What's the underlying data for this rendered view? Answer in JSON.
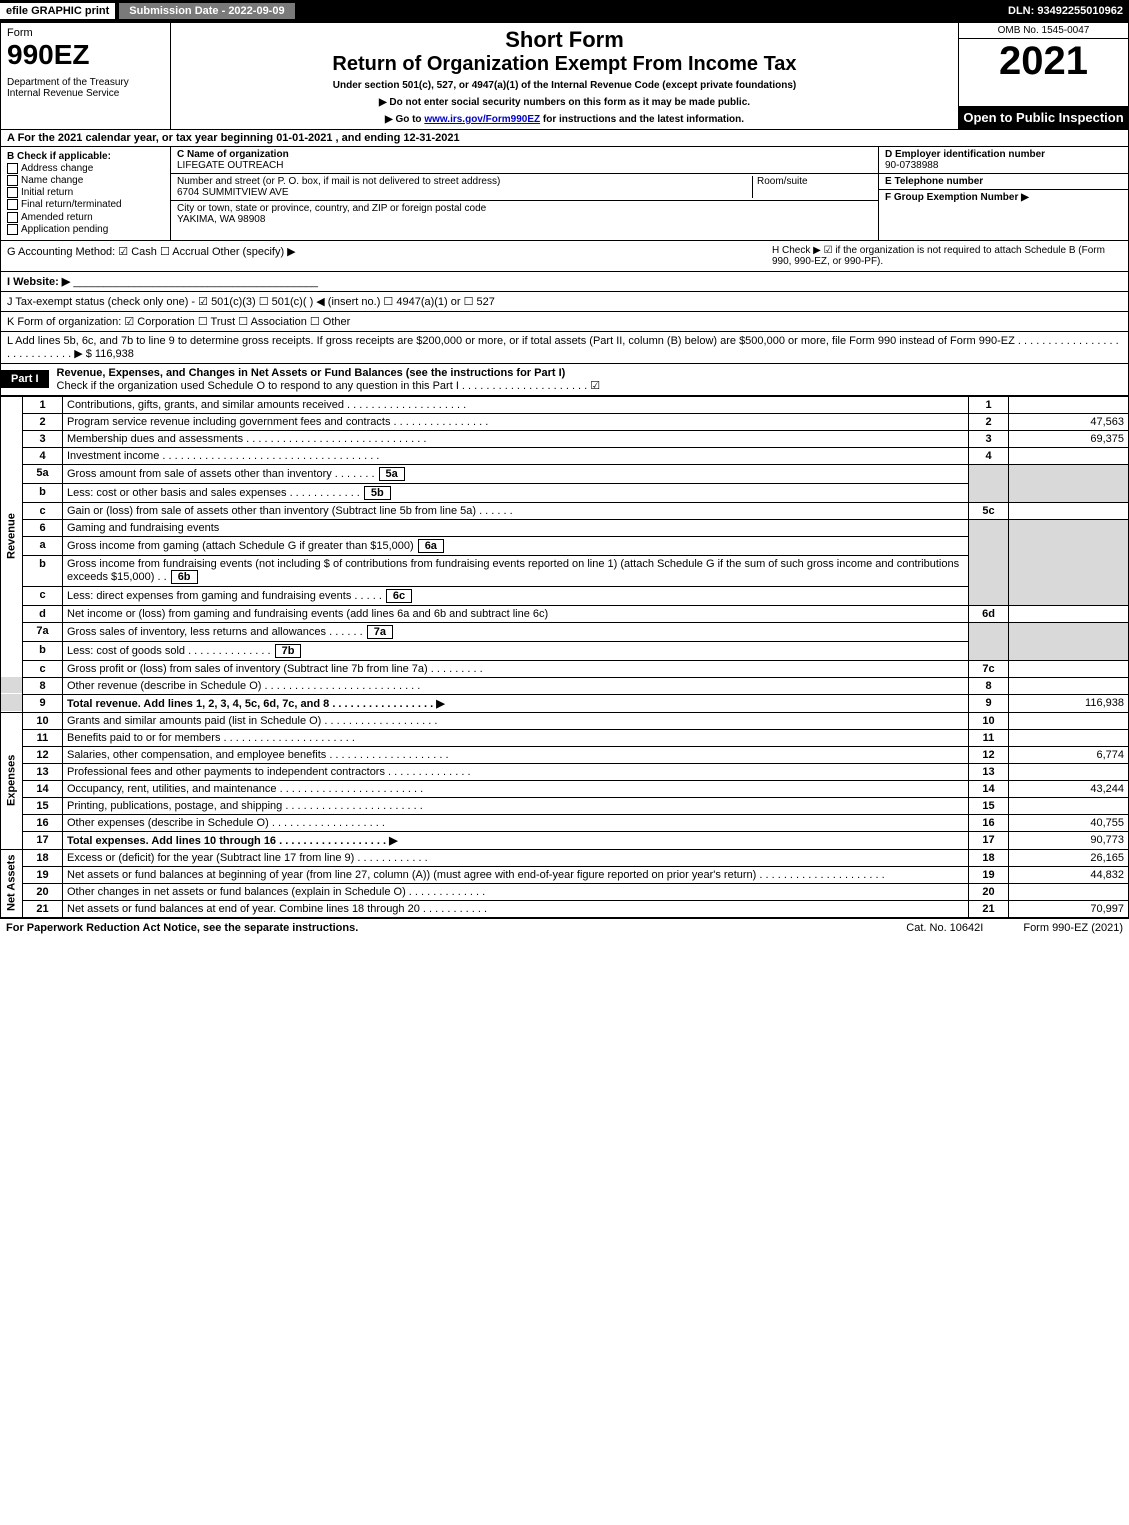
{
  "topbar": {
    "efile": "efile GRAPHIC print",
    "submission": "Submission Date - 2022-09-09",
    "dln": "DLN: 93492255010962"
  },
  "header": {
    "form": "Form",
    "code": "990EZ",
    "dept": "Department of the Treasury\nInternal Revenue Service",
    "short": "Short Form",
    "ret": "Return of Organization Exempt From Income Tax",
    "under": "Under section 501(c), 527, or 4947(a)(1) of the Internal Revenue Code (except private foundations)",
    "dni": "▶ Do not enter social security numbers on this form as it may be made public.",
    "goto_pre": "▶ Go to ",
    "goto_link": "www.irs.gov/Form990EZ",
    "goto_post": " for instructions and the latest information.",
    "omb": "OMB No. 1545-0047",
    "year": "2021",
    "open": "Open to Public Inspection"
  },
  "row_a": "A  For the 2021 calendar year, or tax year beginning 01-01-2021 , and ending 12-31-2021",
  "col_b": {
    "title": "B  Check if applicable:",
    "opts": [
      "Address change",
      "Name change",
      "Initial return",
      "Final return/terminated",
      "Amended return",
      "Application pending"
    ]
  },
  "col_c": {
    "name_lbl": "C Name of organization",
    "name": "LIFEGATE OUTREACH",
    "street_lbl": "Number and street (or P. O. box, if mail is not delivered to street address)",
    "street": "6704 SUMMITVIEW AVE",
    "room_lbl": "Room/suite",
    "city_lbl": "City or town, state or province, country, and ZIP or foreign postal code",
    "city": "YAKIMA, WA  98908"
  },
  "col_d": {
    "ein_lbl": "D Employer identification number",
    "ein": "90-0738988",
    "tel_lbl": "E Telephone number",
    "tel": "",
    "grp_lbl": "F Group Exemption Number  ▶",
    "grp": ""
  },
  "row_g": "G Accounting Method:  ☑ Cash  ☐ Accrual  Other (specify) ▶",
  "row_h": "H  Check ▶ ☑ if the organization is not required to attach Schedule B (Form 990, 990-EZ, or 990-PF).",
  "row_i": "I Website: ▶",
  "row_j": "J Tax-exempt status (check only one) - ☑ 501(c)(3) ☐ 501(c)( ) ◀ (insert no.) ☐ 4947(a)(1) or ☐ 527",
  "row_k": "K Form of organization:  ☑ Corporation  ☐ Trust  ☐ Association  ☐ Other",
  "row_l": "L Add lines 5b, 6c, and 7b to line 9 to determine gross receipts. If gross receipts are $200,000 or more, or if total assets (Part II, column (B) below) are $500,000 or more, file Form 990 instead of Form 990-EZ  . . . . . . . . . . . . . . . . . . . . . . . . . . . . ▶ $ 116,938",
  "part1": {
    "tag": "Part I",
    "title": "Revenue, Expenses, and Changes in Net Assets or Fund Balances (see the instructions for Part I)",
    "check": "Check if the organization used Schedule O to respond to any question in this Part I . . . . . . . . . . . . . . . . . . . . . ☑"
  },
  "labels": {
    "revenue": "Revenue",
    "expenses": "Expenses",
    "netassets": "Net Assets"
  },
  "lines": {
    "l1": {
      "n": "1",
      "d": "Contributions, gifts, grants, and similar amounts received  . . . . . . . . . . . . . . . . . . . .",
      "r": "1",
      "a": ""
    },
    "l2": {
      "n": "2",
      "d": "Program service revenue including government fees and contracts  . . . . . . . . . . . . . . . .",
      "r": "2",
      "a": "47,563"
    },
    "l3": {
      "n": "3",
      "d": "Membership dues and assessments  . . . . . . . . . . . . . . . . . . . . . . . . . . . . . .",
      "r": "3",
      "a": "69,375"
    },
    "l4": {
      "n": "4",
      "d": "Investment income  . . . . . . . . . . . . . . . . . . . . . . . . . . . . . . . . . . . .",
      "r": "4",
      "a": ""
    },
    "l5a": {
      "n": "5a",
      "d": "Gross amount from sale of assets other than inventory  . . . . . . .",
      "mini": "5a"
    },
    "l5b": {
      "n": "b",
      "d": "Less: cost or other basis and sales expenses  . . . . . . . . . . . .",
      "mini": "5b"
    },
    "l5c": {
      "n": "c",
      "d": "Gain or (loss) from sale of assets other than inventory (Subtract line 5b from line 5a)  . . . . . .",
      "r": "5c",
      "a": ""
    },
    "l6": {
      "n": "6",
      "d": "Gaming and fundraising events"
    },
    "l6a": {
      "n": "a",
      "d": "Gross income from gaming (attach Schedule G if greater than $15,000)",
      "mini": "6a"
    },
    "l6b": {
      "n": "b",
      "d": "Gross income from fundraising events (not including $                   of contributions from fundraising events reported on line 1) (attach Schedule G if the sum of such gross income and contributions exceeds $15,000)    .  .",
      "mini": "6b"
    },
    "l6c": {
      "n": "c",
      "d": "Less: direct expenses from gaming and fundraising events  . . . . .",
      "mini": "6c"
    },
    "l6d": {
      "n": "d",
      "d": "Net income or (loss) from gaming and fundraising events (add lines 6a and 6b and subtract line 6c)",
      "r": "6d",
      "a": ""
    },
    "l7a": {
      "n": "7a",
      "d": "Gross sales of inventory, less returns and allowances  . . . . . .",
      "mini": "7a"
    },
    "l7b": {
      "n": "b",
      "d": "Less: cost of goods sold       .  .  .  .  .  .  .  .  .  .  .  .  .  .",
      "mini": "7b"
    },
    "l7c": {
      "n": "c",
      "d": "Gross profit or (loss) from sales of inventory (Subtract line 7b from line 7a)  . . . . . . . . .",
      "r": "7c",
      "a": ""
    },
    "l8": {
      "n": "8",
      "d": "Other revenue (describe in Schedule O)  . . . . . . . . . . . . . . . . . . . . . . . . . .",
      "r": "8",
      "a": ""
    },
    "l9": {
      "n": "9",
      "d": "Total revenue. Add lines 1, 2, 3, 4, 5c, 6d, 7c, and 8  . . . . . . . . . . . . . . . . .  ▶",
      "r": "9",
      "a": "116,938",
      "bold": true
    },
    "l10": {
      "n": "10",
      "d": "Grants and similar amounts paid (list in Schedule O)  . . . . . . . . . . . . . . . . . . .",
      "r": "10",
      "a": ""
    },
    "l11": {
      "n": "11",
      "d": "Benefits paid to or for members      .  .  .  .  .  .  .  .  .  .  .  .  .  .  .  .  .  .  .  .  .  .",
      "r": "11",
      "a": ""
    },
    "l12": {
      "n": "12",
      "d": "Salaries, other compensation, and employee benefits .  . . . . . . . . . . . . . . . . . . .",
      "r": "12",
      "a": "6,774"
    },
    "l13": {
      "n": "13",
      "d": "Professional fees and other payments to independent contractors  . . . . . . . . . . . . . .",
      "r": "13",
      "a": ""
    },
    "l14": {
      "n": "14",
      "d": "Occupancy, rent, utilities, and maintenance .  . . . . . . . . . . . . . . . . . . . . . . .",
      "r": "14",
      "a": "43,244"
    },
    "l15": {
      "n": "15",
      "d": "Printing, publications, postage, and shipping .  . . . . . . . . . . . . . . . . . . . . . .",
      "r": "15",
      "a": ""
    },
    "l16": {
      "n": "16",
      "d": "Other expenses (describe in Schedule O)     .  .  .  .  .  .  .  .  .  .  .  .  .  .  .  .  .  .  .",
      "r": "16",
      "a": "40,755"
    },
    "l17": {
      "n": "17",
      "d": "Total expenses. Add lines 10 through 16    .  .  .  .  .  .  .  .  .  .  .  .  .  .  .  .  .  .  ▶",
      "r": "17",
      "a": "90,773",
      "bold": true
    },
    "l18": {
      "n": "18",
      "d": "Excess or (deficit) for the year (Subtract line 17 from line 9)       .  .  .  .  .  .  .  .  .  .  .  .",
      "r": "18",
      "a": "26,165"
    },
    "l19": {
      "n": "19",
      "d": "Net assets or fund balances at beginning of year (from line 27, column (A)) (must agree with end-of-year figure reported on prior year's return) .  . . . . . . . . . . . . . . . . . . . .",
      "r": "19",
      "a": "44,832"
    },
    "l20": {
      "n": "20",
      "d": "Other changes in net assets or fund balances (explain in Schedule O) .  . . . . . . . . . . . .",
      "r": "20",
      "a": ""
    },
    "l21": {
      "n": "21",
      "d": "Net assets or fund balances at end of year. Combine lines 18 through 20 .  . . . . . . . . . .",
      "r": "21",
      "a": "70,997"
    }
  },
  "footer": {
    "fpr": "For Paperwork Reduction Act Notice, see the separate instructions.",
    "cat": "Cat. No. 10642I",
    "form": "Form 990-EZ (2021)"
  }
}
